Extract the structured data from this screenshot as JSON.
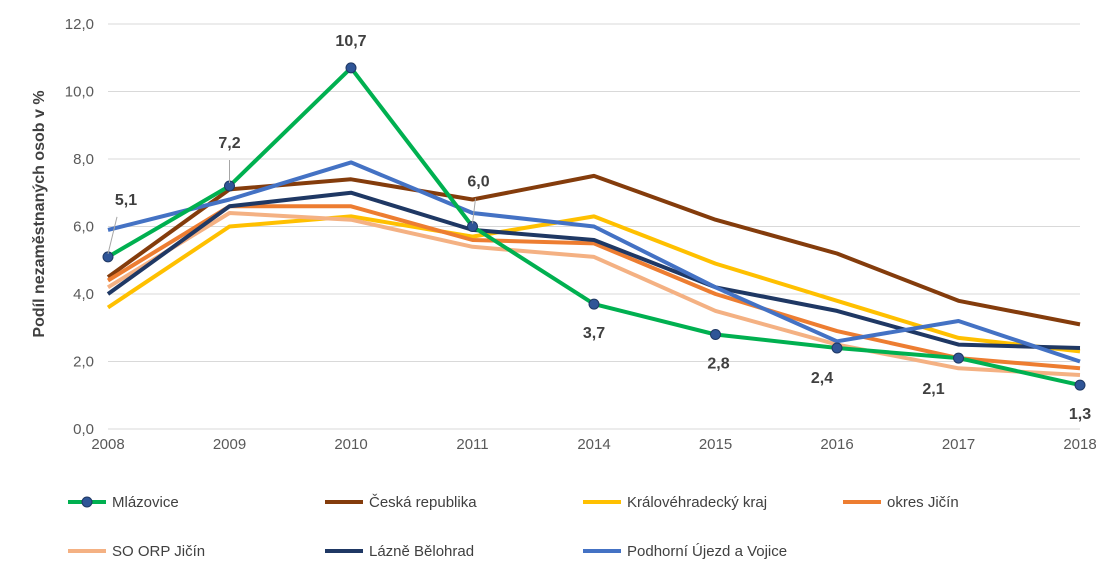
{
  "chart_data": {
    "type": "line",
    "title": "",
    "xlabel": "",
    "ylabel": "Podíl nezaměstnaných osob v %",
    "categories": [
      "2008",
      "2009",
      "2010",
      "2011",
      "2014",
      "2015",
      "2016",
      "2017",
      "2018"
    ],
    "ylim": [
      0,
      12
    ],
    "yticks": [
      "0,0",
      "2,0",
      "4,0",
      "6,0",
      "8,0",
      "10,0",
      "12,0"
    ],
    "grid": "horizontal",
    "legend_position": "bottom",
    "series": [
      {
        "name": "Česká republika",
        "color": "#843C0C",
        "values": [
          4.5,
          7.1,
          7.4,
          6.8,
          7.5,
          6.2,
          5.2,
          3.8,
          3.1
        ]
      },
      {
        "name": "Královéhradecký kraj",
        "color": "#FFC000",
        "values": [
          3.6,
          6.0,
          6.3,
          5.7,
          6.3,
          4.9,
          3.8,
          2.7,
          2.3
        ]
      },
      {
        "name": "okres Jičín",
        "color": "#ED7D31",
        "values": [
          4.4,
          6.6,
          6.6,
          5.6,
          5.5,
          4.0,
          2.9,
          2.1,
          1.8
        ]
      },
      {
        "name": "SO ORP Jičín",
        "color": "#F4B183",
        "values": [
          4.2,
          6.4,
          6.2,
          5.4,
          5.1,
          3.5,
          2.5,
          1.8,
          1.6
        ]
      },
      {
        "name": "Lázně Bělohrad",
        "color": "#1F3864",
        "values": [
          4.0,
          6.6,
          7.0,
          5.9,
          5.6,
          4.2,
          3.5,
          2.5,
          2.4
        ]
      },
      {
        "name": "Podhorní Újezd a Vojice",
        "color": "#4472C4",
        "values": [
          5.9,
          6.8,
          7.9,
          6.4,
          6.0,
          4.2,
          2.6,
          3.2,
          2.0
        ]
      },
      {
        "name": "Mlázovice",
        "color": "#00B050",
        "marker_color": "#2F5597",
        "values": [
          5.1,
          7.2,
          10.7,
          6.0,
          3.7,
          2.8,
          2.4,
          2.1,
          1.3
        ],
        "labels": [
          "5,1",
          "7,2",
          "10,7",
          "6,0",
          "3,7",
          "2,8",
          "2,4",
          "2,1",
          "1,3"
        ]
      }
    ],
    "legend_order": [
      "Mlázovice",
      "Česká republika",
      "Královéhradecký kraj",
      "okres Jičín",
      "SO ORP Jičín",
      "Lázně Bělohrad",
      "Podhorní Újezd a Vojice"
    ]
  }
}
